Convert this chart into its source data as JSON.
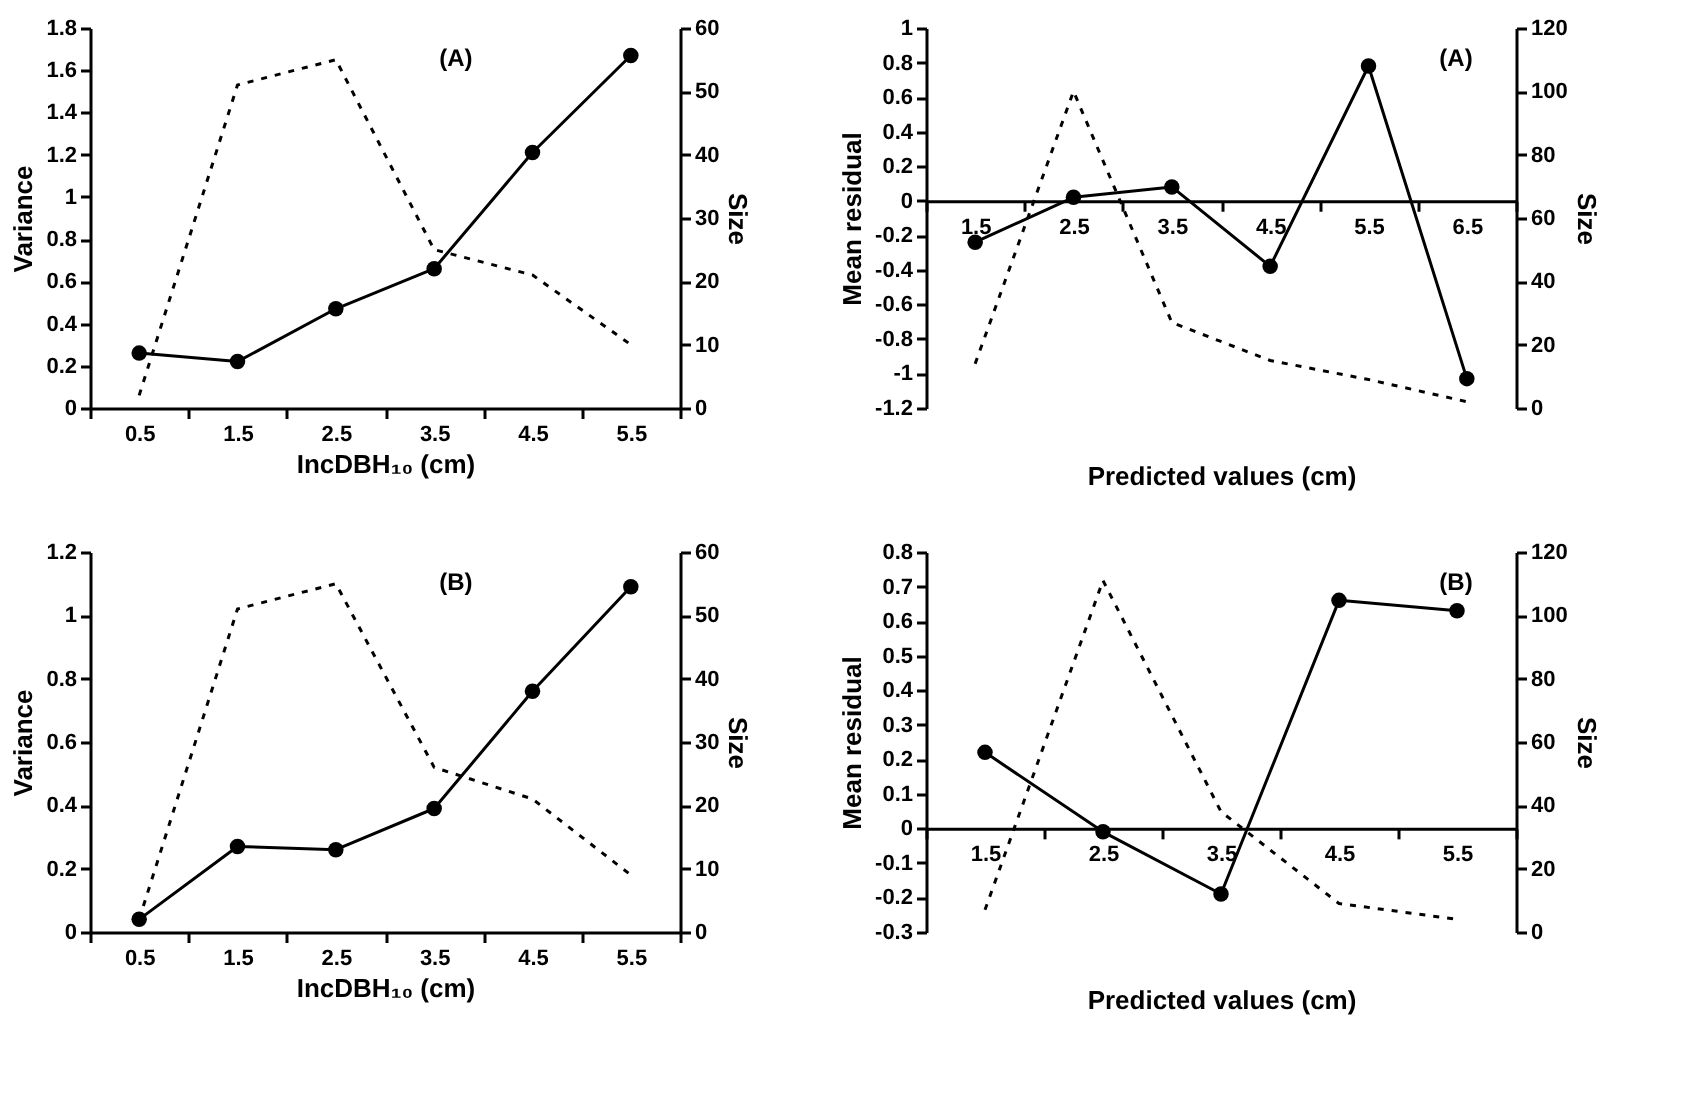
{
  "chart_data": [
    {
      "type": "line",
      "categories": [
        "0.5",
        "1.5",
        "2.5",
        "3.5",
        "4.5",
        "5.5"
      ],
      "xlabel": "IncDBH₁₀ (cm)",
      "ylabel": "Variance",
      "y2label": "Size",
      "ylim": [
        0,
        1.8
      ],
      "yticks": [
        0,
        0.2,
        0.4,
        0.6,
        0.8,
        1,
        1.2,
        1.4,
        1.6,
        1.8
      ],
      "y2lim": [
        0,
        60
      ],
      "y2ticks": [
        0,
        10,
        20,
        30,
        40,
        50,
        60
      ],
      "annotations": [
        "(A)"
      ],
      "series": [
        {
          "values": [
            0.26,
            0.22,
            0.47,
            0.66,
            1.21,
            1.67
          ],
          "color": "#000000",
          "marker": "circle",
          "line_style": "solid"
        },
        {
          "values": [
            2,
            51,
            55,
            25,
            21,
            10
          ],
          "axis": "y2",
          "color": "#000000",
          "marker": "none",
          "line_style": "dashed"
        }
      ]
    },
    {
      "type": "line",
      "categories": [
        "1.5",
        "2.5",
        "3.5",
        "4.5",
        "5.5",
        "6.5"
      ],
      "xlabel": "Predicted values (cm)",
      "ylabel": "Mean residual",
      "y2label": "Size",
      "ylim": [
        -1.2,
        1
      ],
      "yticks": [
        -1.2,
        -1,
        -0.8,
        -0.6,
        -0.4,
        -0.2,
        0,
        0.2,
        0.4,
        0.6,
        0.8,
        1
      ],
      "y2lim": [
        0,
        120
      ],
      "y2ticks": [
        0,
        20,
        40,
        60,
        80,
        100,
        120
      ],
      "annotations": [
        "(A)"
      ],
      "series": [
        {
          "values": [
            -0.24,
            0.02,
            0.08,
            -0.38,
            0.78,
            -1.03
          ],
          "color": "#000000",
          "marker": "circle",
          "line_style": "solid"
        },
        {
          "values": [
            14,
            100,
            27,
            15,
            9,
            2
          ],
          "axis": "y2",
          "color": "#000000",
          "marker": "none",
          "line_style": "dashed"
        }
      ]
    },
    {
      "type": "line",
      "categories": [
        "0.5",
        "1.5",
        "2.5",
        "3.5",
        "4.5",
        "5.5"
      ],
      "xlabel": "IncDBH₁₀ (cm)",
      "ylabel": "Variance",
      "y2label": "Size",
      "ylim": [
        0,
        1.2
      ],
      "yticks": [
        0,
        0.2,
        0.4,
        0.6,
        0.8,
        1,
        1.2
      ],
      "y2lim": [
        0,
        60
      ],
      "y2ticks": [
        0,
        10,
        20,
        30,
        40,
        50,
        60
      ],
      "annotations": [
        "(B)"
      ],
      "series": [
        {
          "values": [
            0.04,
            0.27,
            0.26,
            0.39,
            0.76,
            1.09
          ],
          "color": "#000000",
          "marker": "circle",
          "line_style": "solid"
        },
        {
          "values": [
            2,
            51,
            55,
            26,
            21,
            9
          ],
          "axis": "y2",
          "color": "#000000",
          "marker": "none",
          "line_style": "dashed"
        }
      ]
    },
    {
      "type": "line",
      "categories": [
        "1.5",
        "2.5",
        "3.5",
        "4.5",
        "5.5"
      ],
      "xlabel": "Predicted values (cm)",
      "ylabel": "Mean residual",
      "y2label": "Size",
      "ylim": [
        -0.3,
        0.8
      ],
      "yticks": [
        -0.3,
        -0.2,
        -0.1,
        0,
        0.1,
        0.2,
        0.3,
        0.4,
        0.5,
        0.6,
        0.7,
        0.8
      ],
      "y2lim": [
        0,
        120
      ],
      "y2ticks": [
        0,
        20,
        40,
        60,
        80,
        100,
        120
      ],
      "annotations": [
        "(B)"
      ],
      "series": [
        {
          "values": [
            0.22,
            -0.01,
            -0.19,
            0.66,
            0.63
          ],
          "color": "#000000",
          "marker": "circle",
          "line_style": "solid"
        },
        {
          "values": [
            7,
            111,
            38,
            9,
            4
          ],
          "axis": "y2",
          "color": "#000000",
          "marker": "none",
          "line_style": "dashed"
        }
      ]
    }
  ]
}
